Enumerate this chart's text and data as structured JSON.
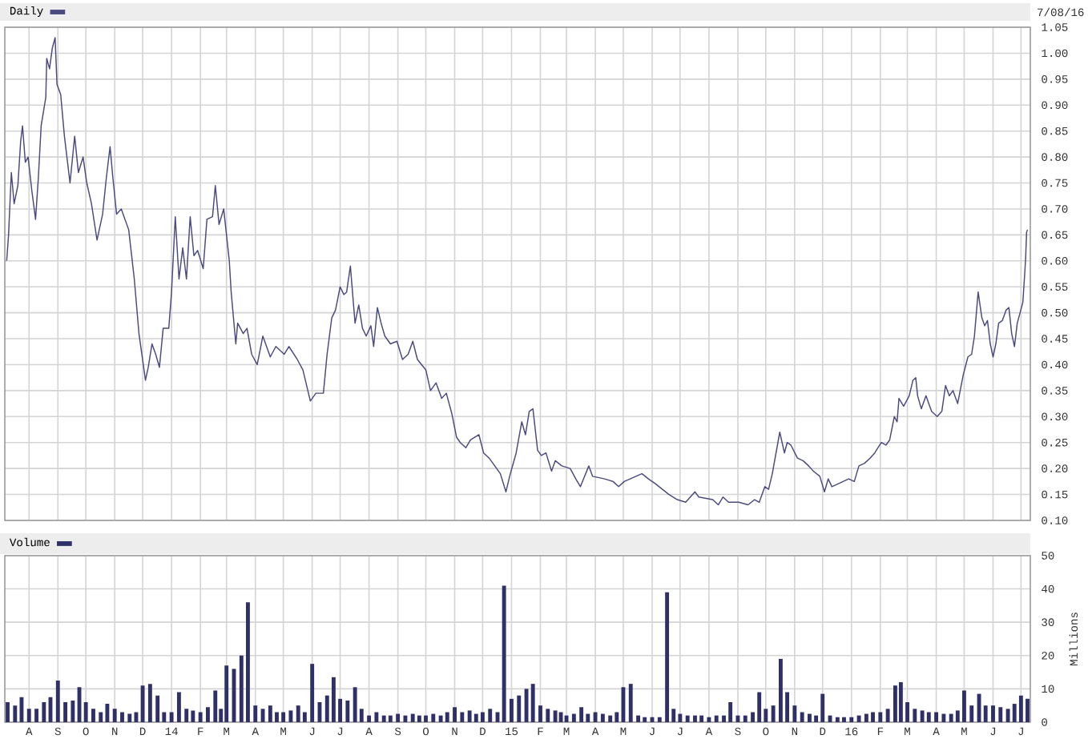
{
  "chart_data": [
    {
      "type": "line",
      "xlim": [
        "2013-07-06",
        "2016-07-11"
      ],
      "xticks": [
        {
          "value": "2013-08-01",
          "label": null
        },
        {
          "value": "2013-09-01",
          "label": null
        },
        {
          "value": "2013-10-01",
          "label": null
        },
        {
          "value": "2013-11-01",
          "label": null
        },
        {
          "value": "2013-12-01",
          "label": null
        },
        {
          "value": "2014-01-01",
          "label": null
        },
        {
          "value": "2014-02-01",
          "label": null
        },
        {
          "value": "2014-03-01",
          "label": null
        },
        {
          "value": "2014-04-01",
          "label": null
        },
        {
          "value": "2014-05-01",
          "label": null
        },
        {
          "value": "2014-06-01",
          "label": null
        },
        {
          "value": "2014-07-01",
          "label": null
        },
        {
          "value": "2014-08-01",
          "label": null
        },
        {
          "value": "2014-09-01",
          "label": null
        },
        {
          "value": "2014-10-01",
          "label": null
        },
        {
          "value": "2014-11-01",
          "label": null
        },
        {
          "value": "2014-12-01",
          "label": null
        },
        {
          "value": "2015-01-01",
          "label": null
        },
        {
          "value": "2015-02-01",
          "label": null
        },
        {
          "value": "2015-03-01",
          "label": null
        },
        {
          "value": "2015-04-01",
          "label": null
        },
        {
          "value": "2015-05-01",
          "label": null
        },
        {
          "value": "2015-06-01",
          "label": null
        },
        {
          "value": "2015-07-01",
          "label": null
        },
        {
          "value": "2015-08-01",
          "label": null
        },
        {
          "value": "2015-09-01",
          "label": null
        },
        {
          "value": "2015-10-01",
          "label": null
        },
        {
          "value": "2015-11-01",
          "label": null
        },
        {
          "value": "2015-12-01",
          "label": null
        },
        {
          "value": "2016-01-01",
          "label": null
        },
        {
          "value": "2016-02-01",
          "label": null
        },
        {
          "value": "2016-03-01",
          "label": null
        },
        {
          "value": "2016-04-01",
          "label": null
        },
        {
          "value": "2016-05-01",
          "label": null
        },
        {
          "value": "2016-06-01",
          "label": null
        },
        {
          "value": "2016-07-01",
          "label": null
        }
      ],
      "ylim": [
        0.1,
        1.05
      ],
      "yticks": [
        {
          "value": 0.1,
          "label": "0.10"
        },
        0.15,
        {
          "value": 0.2,
          "label": "0.20"
        },
        0.25,
        {
          "value": 0.3,
          "label": "0.30"
        },
        0.35,
        {
          "value": 0.4,
          "label": "0.40"
        },
        0.45,
        {
          "value": 0.5,
          "label": "0.50"
        },
        0.55,
        {
          "value": 0.6,
          "label": "0.60"
        },
        0.65,
        {
          "value": 0.7,
          "label": "0.70"
        },
        0.75,
        {
          "value": 0.8,
          "label": "0.80"
        },
        0.85,
        {
          "value": 0.9,
          "label": "0.90"
        },
        0.95,
        {
          "value": 1.0,
          "label": "1.00"
        },
        1.05
      ],
      "grid": true,
      "legend": "top left",
      "tick_labels": "y",
      "annotations": [
        "7/08/16"
      ],
      "series": [
        {
          "name": "Daily",
          "color": "#4a4a80",
          "x": [
            "2013-07-08",
            "2013-07-10",
            "2013-07-13",
            "2013-07-16",
            "2013-07-20",
            "2013-07-23",
            "2013-07-25",
            "2013-07-28",
            "2013-07-31",
            "2013-08-04",
            "2013-08-08",
            "2013-08-11",
            "2013-08-14",
            "2013-08-19",
            "2013-08-20",
            "2013-08-23",
            "2013-08-26",
            "2013-08-29",
            "2013-08-31",
            "2013-09-04",
            "2013-09-08",
            "2013-09-14",
            "2013-09-19",
            "2013-09-23",
            "2013-09-28",
            "2013-10-02",
            "2013-10-07",
            "2013-10-13",
            "2013-10-19",
            "2013-10-23",
            "2013-10-27",
            "2013-10-30",
            "2013-11-03",
            "2013-11-08",
            "2013-11-16",
            "2013-11-22",
            "2013-11-27",
            "2013-12-04",
            "2013-12-07",
            "2013-12-11",
            "2013-12-15",
            "2013-12-19",
            "2013-12-23",
            "2013-12-29",
            "2014-01-01",
            "2014-01-05",
            "2014-01-09",
            "2014-01-13",
            "2014-01-17",
            "2014-01-21",
            "2014-01-25",
            "2014-01-29",
            "2014-02-04",
            "2014-02-08",
            "2014-02-14",
            "2014-02-17",
            "2014-02-21",
            "2014-02-26",
            "2014-03-04",
            "2014-03-06",
            "2014-03-11",
            "2014-03-13",
            "2014-03-19",
            "2014-03-23",
            "2014-03-28",
            "2014-04-03",
            "2014-04-09",
            "2014-04-17",
            "2014-04-23",
            "2014-05-02",
            "2014-05-07",
            "2014-05-16",
            "2014-05-22",
            "2014-05-26",
            "2014-05-30",
            "2014-06-05",
            "2014-06-13",
            "2014-06-17",
            "2014-06-22",
            "2014-06-26",
            "2014-07-01",
            "2014-07-05",
            "2014-07-08",
            "2014-07-12",
            "2014-07-17",
            "2014-07-21",
            "2014-07-25",
            "2014-07-29",
            "2014-08-03",
            "2014-08-06",
            "2014-08-10",
            "2014-08-14",
            "2014-08-18",
            "2014-08-24",
            "2014-08-31",
            "2014-09-06",
            "2014-09-12",
            "2014-09-17",
            "2014-09-22",
            "2014-10-01",
            "2014-10-06",
            "2014-10-12",
            "2014-10-18",
            "2014-10-23",
            "2014-10-29",
            "2014-11-03",
            "2014-11-07",
            "2014-11-13",
            "2014-11-18",
            "2014-11-27",
            "2014-12-02",
            "2014-12-08",
            "2014-12-14",
            "2014-12-20",
            "2014-12-26",
            "2014-12-30",
            "2015-01-06",
            "2015-01-12",
            "2015-01-16",
            "2015-01-20",
            "2015-01-24",
            "2015-01-29",
            "2015-02-02",
            "2015-02-07",
            "2015-02-13",
            "2015-02-17",
            "2015-02-24",
            "2015-03-05",
            "2015-03-11",
            "2015-03-16",
            "2015-03-25",
            "2015-03-29",
            "2015-04-11",
            "2015-04-20",
            "2015-04-26",
            "2015-05-02",
            "2015-05-21",
            "2015-05-28",
            "2015-06-05",
            "2015-06-12",
            "2015-06-19",
            "2015-06-28",
            "2015-07-07",
            "2015-07-17",
            "2015-07-21",
            "2015-08-05",
            "2015-08-11",
            "2015-08-16",
            "2015-08-22",
            "2015-09-02",
            "2015-09-12",
            "2015-09-19",
            "2015-09-24",
            "2015-09-30",
            "2015-10-04",
            "2015-10-08",
            "2015-10-16",
            "2015-10-21",
            "2015-10-24",
            "2015-10-28",
            "2015-11-04",
            "2015-11-10",
            "2015-11-16",
            "2015-11-21",
            "2015-11-28",
            "2015-12-03",
            "2015-12-07",
            "2015-12-11",
            "2015-12-17",
            "2015-12-23",
            "2015-12-29",
            "2016-01-04",
            "2016-01-09",
            "2016-01-15",
            "2016-01-21",
            "2016-01-26",
            "2016-02-02",
            "2016-02-07",
            "2016-02-11",
            "2016-02-16",
            "2016-02-19",
            "2016-02-21",
            "2016-02-26",
            "2016-03-03",
            "2016-03-07",
            "2016-03-10",
            "2016-03-12",
            "2016-03-16",
            "2016-03-21",
            "2016-03-27",
            "2016-04-02",
            "2016-04-07",
            "2016-04-11",
            "2016-04-15",
            "2016-04-19",
            "2016-04-24",
            "2016-04-30",
            "2016-05-05",
            "2016-05-09",
            "2016-05-12",
            "2016-05-16",
            "2016-05-20",
            "2016-05-23",
            "2016-05-26",
            "2016-05-29",
            "2016-06-01",
            "2016-06-04",
            "2016-06-07",
            "2016-06-11",
            "2016-06-15",
            "2016-06-18",
            "2016-06-21",
            "2016-06-24",
            "2016-06-27",
            "2016-06-30",
            "2016-07-03",
            "2016-07-05",
            "2016-07-06",
            "2016-07-07",
            "2016-07-08"
          ],
          "values": [
            0.6,
            0.65,
            0.77,
            0.71,
            0.745,
            0.83,
            0.86,
            0.79,
            0.8,
            0.735,
            0.68,
            0.76,
            0.86,
            0.915,
            0.99,
            0.97,
            1.01,
            1.03,
            0.94,
            0.92,
            0.84,
            0.75,
            0.84,
            0.77,
            0.8,
            0.75,
            0.71,
            0.64,
            0.69,
            0.76,
            0.82,
            0.76,
            0.69,
            0.7,
            0.66,
            0.565,
            0.46,
            0.37,
            0.395,
            0.44,
            0.42,
            0.395,
            0.47,
            0.47,
            0.54,
            0.685,
            0.565,
            0.625,
            0.565,
            0.685,
            0.61,
            0.62,
            0.585,
            0.68,
            0.685,
            0.745,
            0.67,
            0.7,
            0.6,
            0.54,
            0.44,
            0.48,
            0.46,
            0.47,
            0.42,
            0.4,
            0.455,
            0.415,
            0.435,
            0.42,
            0.435,
            0.41,
            0.39,
            0.36,
            0.33,
            0.345,
            0.345,
            0.42,
            0.49,
            0.505,
            0.55,
            0.535,
            0.54,
            0.59,
            0.48,
            0.515,
            0.47,
            0.455,
            0.475,
            0.435,
            0.51,
            0.48,
            0.455,
            0.44,
            0.445,
            0.41,
            0.42,
            0.445,
            0.41,
            0.39,
            0.35,
            0.365,
            0.335,
            0.345,
            0.305,
            0.26,
            0.25,
            0.24,
            0.255,
            0.265,
            0.23,
            0.22,
            0.205,
            0.19,
            0.155,
            0.185,
            0.23,
            0.29,
            0.265,
            0.31,
            0.315,
            0.235,
            0.225,
            0.23,
            0.195,
            0.215,
            0.205,
            0.2,
            0.18,
            0.165,
            0.205,
            0.185,
            0.18,
            0.175,
            0.165,
            0.175,
            0.19,
            0.18,
            0.17,
            0.16,
            0.15,
            0.14,
            0.135,
            0.155,
            0.145,
            0.14,
            0.13,
            0.145,
            0.135,
            0.135,
            0.13,
            0.14,
            0.135,
            0.165,
            0.16,
            0.19,
            0.27,
            0.23,
            0.25,
            0.245,
            0.22,
            0.215,
            0.205,
            0.195,
            0.185,
            0.155,
            0.18,
            0.165,
            0.17,
            0.175,
            0.18,
            0.175,
            0.205,
            0.21,
            0.22,
            0.23,
            0.25,
            0.245,
            0.255,
            0.3,
            0.29,
            0.335,
            0.32,
            0.34,
            0.37,
            0.375,
            0.34,
            0.315,
            0.34,
            0.31,
            0.3,
            0.31,
            0.36,
            0.34,
            0.35,
            0.325,
            0.38,
            0.415,
            0.42,
            0.455,
            0.54,
            0.49,
            0.475,
            0.485,
            0.44,
            0.415,
            0.44,
            0.48,
            0.485,
            0.505,
            0.51,
            0.46,
            0.435,
            0.48,
            0.5,
            0.52,
            0.575,
            0.605,
            0.655,
            0.66
          ]
        }
      ]
    },
    {
      "type": "bar",
      "xlim": [
        "2013-07-06",
        "2016-07-11"
      ],
      "xticks": [
        {
          "value": "2013-08-01",
          "label": "A"
        },
        {
          "value": "2013-09-01",
          "label": "S"
        },
        {
          "value": "2013-10-01",
          "label": "O"
        },
        {
          "value": "2013-11-01",
          "label": "N"
        },
        {
          "value": "2013-12-01",
          "label": "D"
        },
        {
          "value": "2014-01-01",
          "label": "14"
        },
        {
          "value": "2014-02-01",
          "label": "F"
        },
        {
          "value": "2014-03-01",
          "label": "M"
        },
        {
          "value": "2014-04-01",
          "label": "A"
        },
        {
          "value": "2014-05-01",
          "label": "M"
        },
        {
          "value": "2014-06-01",
          "label": "J"
        },
        {
          "value": "2014-07-01",
          "label": "J"
        },
        {
          "value": "2014-08-01",
          "label": "A"
        },
        {
          "value": "2014-09-01",
          "label": "S"
        },
        {
          "value": "2014-10-01",
          "label": "O"
        },
        {
          "value": "2014-11-01",
          "label": "N"
        },
        {
          "value": "2014-12-01",
          "label": "D"
        },
        {
          "value": "2015-01-01",
          "label": "15"
        },
        {
          "value": "2015-02-01",
          "label": "F"
        },
        {
          "value": "2015-03-01",
          "label": "M"
        },
        {
          "value": "2015-04-01",
          "label": "A"
        },
        {
          "value": "2015-05-01",
          "label": "M"
        },
        {
          "value": "2015-06-01",
          "label": "J"
        },
        {
          "value": "2015-07-01",
          "label": "J"
        },
        {
          "value": "2015-08-01",
          "label": "A"
        },
        {
          "value": "2015-09-01",
          "label": "S"
        },
        {
          "value": "2015-10-01",
          "label": "O"
        },
        {
          "value": "2015-11-01",
          "label": "N"
        },
        {
          "value": "2015-12-01",
          "label": "D"
        },
        {
          "value": "2016-01-01",
          "label": "16"
        },
        {
          "value": "2016-02-01",
          "label": "F"
        },
        {
          "value": "2016-03-01",
          "label": "M"
        },
        {
          "value": "2016-04-01",
          "label": "A"
        },
        {
          "value": "2016-05-01",
          "label": "M"
        },
        {
          "value": "2016-06-01",
          "label": "J"
        },
        {
          "value": "2016-07-01",
          "label": "J"
        }
      ],
      "ylim": [
        0,
        50
      ],
      "yticks": [
        0,
        10,
        20,
        30,
        40,
        50
      ],
      "ylabel": "Millions",
      "grid": true,
      "legend": "top left",
      "series": [
        {
          "name": "Volume",
          "color": "#303068",
          "x": [
            "2013-07-09",
            "2013-07-17",
            "2013-07-24",
            "2013-08-01",
            "2013-08-09",
            "2013-08-17",
            "2013-08-24",
            "2013-09-01",
            "2013-09-09",
            "2013-09-17",
            "2013-09-24",
            "2013-10-01",
            "2013-10-09",
            "2013-10-17",
            "2013-10-24",
            "2013-11-01",
            "2013-11-09",
            "2013-11-17",
            "2013-11-24",
            "2013-12-01",
            "2013-12-09",
            "2013-12-17",
            "2013-12-24",
            "2014-01-01",
            "2014-01-09",
            "2014-01-17",
            "2014-01-24",
            "2014-02-01",
            "2014-02-09",
            "2014-02-17",
            "2014-02-23",
            "2014-03-01",
            "2014-03-09",
            "2014-03-17",
            "2014-03-24",
            "2014-04-01",
            "2014-04-09",
            "2014-04-17",
            "2014-04-24",
            "2014-05-01",
            "2014-05-09",
            "2014-05-17",
            "2014-05-24",
            "2014-06-01",
            "2014-06-09",
            "2014-06-17",
            "2014-06-24",
            "2014-07-01",
            "2014-07-09",
            "2014-07-17",
            "2014-07-24",
            "2014-08-01",
            "2014-08-09",
            "2014-08-17",
            "2014-08-24",
            "2014-09-01",
            "2014-09-09",
            "2014-09-17",
            "2014-09-24",
            "2014-10-01",
            "2014-10-09",
            "2014-10-17",
            "2014-10-24",
            "2014-11-01",
            "2014-11-09",
            "2014-11-17",
            "2014-11-24",
            "2014-12-01",
            "2014-12-09",
            "2014-12-17",
            "2014-12-24",
            "2015-01-01",
            "2015-01-09",
            "2015-01-17",
            "2015-01-24",
            "2015-02-01",
            "2015-02-09",
            "2015-02-17",
            "2015-02-23",
            "2015-03-01",
            "2015-03-09",
            "2015-03-17",
            "2015-03-24",
            "2015-04-01",
            "2015-04-09",
            "2015-04-17",
            "2015-04-24",
            "2015-05-01",
            "2015-05-09",
            "2015-05-17",
            "2015-05-24",
            "2015-06-01",
            "2015-06-09",
            "2015-06-17",
            "2015-06-24",
            "2015-07-01",
            "2015-07-09",
            "2015-07-17",
            "2015-07-24",
            "2015-08-01",
            "2015-08-09",
            "2015-08-17",
            "2015-08-24",
            "2015-09-01",
            "2015-09-09",
            "2015-09-17",
            "2015-09-24",
            "2015-10-01",
            "2015-10-09",
            "2015-10-17",
            "2015-10-24",
            "2015-11-01",
            "2015-11-09",
            "2015-11-17",
            "2015-11-24",
            "2015-12-01",
            "2015-12-09",
            "2015-12-17",
            "2015-12-24",
            "2016-01-01",
            "2016-01-09",
            "2016-01-17",
            "2016-01-24",
            "2016-02-01",
            "2016-02-09",
            "2016-02-17",
            "2016-02-23",
            "2016-03-01",
            "2016-03-09",
            "2016-03-17",
            "2016-03-24",
            "2016-04-01",
            "2016-04-09",
            "2016-04-17",
            "2016-04-24",
            "2016-05-01",
            "2016-05-09",
            "2016-05-17",
            "2016-05-24",
            "2016-06-01",
            "2016-06-09",
            "2016-06-17",
            "2016-06-24",
            "2016-07-01",
            "2016-07-08"
          ],
          "values": [
            6,
            5,
            7.5,
            4,
            4,
            6,
            7.5,
            12.5,
            6,
            6.5,
            10.5,
            6,
            4,
            3,
            5.5,
            4,
            3,
            2.5,
            3,
            11,
            11.5,
            8,
            3,
            3,
            9,
            4,
            3.5,
            3,
            4.5,
            9.5,
            4,
            17,
            16,
            20,
            36,
            5,
            4,
            5,
            3,
            3,
            3.5,
            5,
            3,
            17.5,
            6,
            8,
            13.5,
            7,
            6.5,
            10.5,
            4,
            2,
            3,
            2,
            2,
            2.5,
            2,
            2.5,
            2,
            2,
            2.5,
            2,
            3,
            4.5,
            3,
            3.5,
            2.5,
            3,
            4,
            3,
            41,
            7,
            8,
            10,
            11.5,
            5,
            4,
            3.5,
            3,
            2,
            2.5,
            4.5,
            2.5,
            3,
            2.5,
            2,
            3,
            10.5,
            11.5,
            2,
            1.5,
            1.5,
            1.5,
            39,
            4,
            2.5,
            2,
            2,
            2,
            1.5,
            2,
            2,
            6,
            2,
            2,
            3,
            9,
            4,
            5,
            19,
            9,
            5,
            3,
            2.5,
            2,
            8.5,
            2,
            1.5,
            1.5,
            1.5,
            2,
            2.5,
            3,
            3,
            4,
            11,
            12,
            6,
            4,
            3.5,
            3,
            3,
            2.5,
            2.5,
            3.5,
            9.5,
            5,
            8.5,
            5,
            5,
            4.5,
            4,
            5.5,
            8,
            7
          ]
        }
      ]
    }
  ]
}
